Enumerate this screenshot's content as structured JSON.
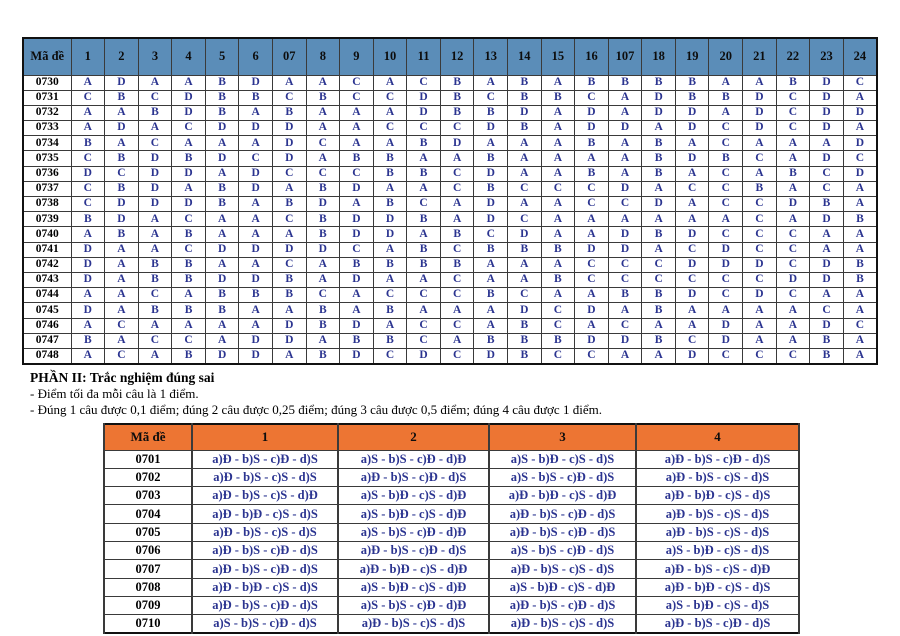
{
  "colors": {
    "header1_bg": "#5b8db8",
    "header2_bg": "#ed7533",
    "answer_text": "#2b3490",
    "code_text": "#000000",
    "page_bg": "#ffffff"
  },
  "part1_table": {
    "header_col0": "Mã đề",
    "columns": [
      "1",
      "2",
      "3",
      "4",
      "5",
      "6",
      "07",
      "8",
      "9",
      "10",
      "11",
      "12",
      "13",
      "14",
      "15",
      "16",
      "107",
      "18",
      "19",
      "20",
      "21",
      "22",
      "23",
      "24"
    ],
    "rows": [
      {
        "code": "0730",
        "answers": [
          "A",
          "D",
          "A",
          "A",
          "B",
          "D",
          "A",
          "A",
          "C",
          "A",
          "C",
          "B",
          "A",
          "B",
          "A",
          "B",
          "B",
          "B",
          "B",
          "A",
          "A",
          "B",
          "D",
          "C"
        ]
      },
      {
        "code": "0731",
        "answers": [
          "C",
          "B",
          "C",
          "D",
          "B",
          "B",
          "C",
          "B",
          "C",
          "C",
          "D",
          "B",
          "C",
          "B",
          "B",
          "C",
          "A",
          "D",
          "B",
          "B",
          "D",
          "C",
          "D",
          "A"
        ]
      },
      {
        "code": "0732",
        "answers": [
          "A",
          "A",
          "B",
          "D",
          "B",
          "A",
          "B",
          "A",
          "A",
          "A",
          "D",
          "B",
          "B",
          "D",
          "A",
          "D",
          "A",
          "D",
          "D",
          "A",
          "D",
          "C",
          "D",
          "D"
        ]
      },
      {
        "code": "0733",
        "answers": [
          "A",
          "D",
          "A",
          "C",
          "D",
          "D",
          "D",
          "A",
          "A",
          "C",
          "C",
          "C",
          "D",
          "B",
          "A",
          "D",
          "D",
          "A",
          "D",
          "C",
          "D",
          "C",
          "D",
          "A"
        ]
      },
      {
        "code": "0734",
        "answers": [
          "B",
          "A",
          "C",
          "A",
          "A",
          "A",
          "D",
          "C",
          "A",
          "A",
          "B",
          "D",
          "A",
          "A",
          "A",
          "B",
          "A",
          "B",
          "A",
          "C",
          "A",
          "A",
          "A",
          "D"
        ]
      },
      {
        "code": "0735",
        "answers": [
          "C",
          "B",
          "D",
          "B",
          "D",
          "C",
          "D",
          "A",
          "B",
          "B",
          "A",
          "A",
          "B",
          "A",
          "A",
          "A",
          "A",
          "B",
          "D",
          "B",
          "C",
          "A",
          "D",
          "C"
        ]
      },
      {
        "code": "0736",
        "answers": [
          "D",
          "C",
          "D",
          "D",
          "A",
          "D",
          "C",
          "C",
          "C",
          "B",
          "B",
          "C",
          "D",
          "A",
          "A",
          "B",
          "A",
          "B",
          "A",
          "C",
          "A",
          "B",
          "C",
          "D"
        ]
      },
      {
        "code": "0737",
        "answers": [
          "C",
          "B",
          "D",
          "A",
          "B",
          "D",
          "A",
          "B",
          "D",
          "A",
          "A",
          "C",
          "B",
          "C",
          "C",
          "C",
          "D",
          "A",
          "C",
          "C",
          "B",
          "A",
          "C",
          "A"
        ]
      },
      {
        "code": "0738",
        "answers": [
          "C",
          "D",
          "D",
          "D",
          "B",
          "A",
          "B",
          "D",
          "A",
          "B",
          "C",
          "A",
          "D",
          "A",
          "A",
          "C",
          "C",
          "D",
          "A",
          "C",
          "C",
          "D",
          "B",
          "A"
        ]
      },
      {
        "code": "0739",
        "answers": [
          "B",
          "D",
          "A",
          "C",
          "A",
          "A",
          "C",
          "B",
          "D",
          "D",
          "B",
          "A",
          "D",
          "C",
          "A",
          "A",
          "A",
          "A",
          "A",
          "A",
          "C",
          "A",
          "D",
          "B"
        ]
      },
      {
        "code": "0740",
        "answers": [
          "A",
          "B",
          "A",
          "B",
          "A",
          "A",
          "A",
          "B",
          "D",
          "D",
          "A",
          "B",
          "C",
          "D",
          "A",
          "A",
          "D",
          "B",
          "D",
          "C",
          "C",
          "C",
          "A",
          "A"
        ]
      },
      {
        "code": "0741",
        "answers": [
          "D",
          "A",
          "A",
          "C",
          "D",
          "D",
          "D",
          "D",
          "C",
          "A",
          "B",
          "C",
          "B",
          "B",
          "B",
          "D",
          "D",
          "A",
          "C",
          "D",
          "C",
          "C",
          "A",
          "A"
        ]
      },
      {
        "code": "0742",
        "answers": [
          "D",
          "A",
          "B",
          "B",
          "A",
          "A",
          "C",
          "A",
          "B",
          "B",
          "B",
          "B",
          "A",
          "A",
          "A",
          "C",
          "C",
          "C",
          "D",
          "D",
          "D",
          "C",
          "D",
          "B"
        ]
      },
      {
        "code": "0743",
        "answers": [
          "D",
          "A",
          "B",
          "B",
          "D",
          "D",
          "B",
          "A",
          "D",
          "A",
          "A",
          "C",
          "A",
          "A",
          "B",
          "C",
          "C",
          "C",
          "C",
          "C",
          "C",
          "D",
          "D",
          "B"
        ]
      },
      {
        "code": "0744",
        "answers": [
          "A",
          "A",
          "C",
          "A",
          "B",
          "B",
          "B",
          "C",
          "A",
          "C",
          "C",
          "C",
          "B",
          "C",
          "A",
          "A",
          "B",
          "B",
          "D",
          "C",
          "D",
          "C",
          "A",
          "A"
        ]
      },
      {
        "code": "0745",
        "answers": [
          "D",
          "A",
          "B",
          "B",
          "B",
          "A",
          "A",
          "B",
          "A",
          "B",
          "A",
          "A",
          "A",
          "D",
          "C",
          "D",
          "A",
          "B",
          "A",
          "A",
          "A",
          "A",
          "C",
          "A"
        ]
      },
      {
        "code": "0746",
        "answers": [
          "A",
          "C",
          "A",
          "A",
          "A",
          "A",
          "D",
          "B",
          "D",
          "A",
          "C",
          "C",
          "A",
          "B",
          "C",
          "A",
          "C",
          "A",
          "A",
          "D",
          "A",
          "A",
          "D",
          "C"
        ]
      },
      {
        "code": "0747",
        "answers": [
          "B",
          "A",
          "C",
          "C",
          "A",
          "D",
          "D",
          "A",
          "B",
          "B",
          "C",
          "A",
          "B",
          "B",
          "B",
          "D",
          "D",
          "B",
          "C",
          "D",
          "A",
          "A",
          "B",
          "A"
        ]
      },
      {
        "code": "0748",
        "answers": [
          "A",
          "C",
          "A",
          "B",
          "D",
          "D",
          "A",
          "B",
          "D",
          "C",
          "D",
          "C",
          "D",
          "B",
          "C",
          "C",
          "A",
          "A",
          "D",
          "C",
          "C",
          "C",
          "B",
          "A"
        ]
      }
    ]
  },
  "section2": {
    "title": "PHẦN II: Trắc nghiệm đúng sai",
    "notes": [
      "- Điểm tối đa mỗi câu là 1 điểm.",
      "- Đúng 1 câu được 0,1 điểm; đúng 2 câu được 0,25 điểm; đúng 3 câu được 0,5 điểm; đúng 4 câu được 1 điểm."
    ]
  },
  "part2_table": {
    "header_col0": "Mã đề",
    "columns": [
      "1",
      "2",
      "3",
      "4"
    ],
    "rows": [
      {
        "code": "0701",
        "answers": [
          "a)Đ - b)S - c)Đ - d)S",
          "a)S - b)S - c)Đ - d)Đ",
          "a)S - b)Đ - c)S - d)S",
          "a)Đ - b)S - c)Đ - d)S"
        ]
      },
      {
        "code": "0702",
        "answers": [
          "a)Đ - b)S - c)S - d)S",
          "a)Đ - b)S - c)Đ - d)S",
          "a)S - b)S - c)Đ - d)S",
          "a)Đ - b)S - c)S - d)S"
        ]
      },
      {
        "code": "0703",
        "answers": [
          "a)Đ - b)S - c)S - d)Đ",
          "a)S - b)Đ - c)S - d)Đ",
          "a)Đ - b)Đ - c)S - d)Đ",
          "a)Đ - b)Đ - c)S - d)S"
        ]
      },
      {
        "code": "0704",
        "answers": [
          "a)Đ - b)Đ - c)S - d)S",
          "a)S - b)Đ - c)S - d)Đ",
          "a)Đ - b)S - c)Đ - d)S",
          "a)Đ - b)S - c)S - d)S"
        ]
      },
      {
        "code": "0705",
        "answers": [
          "a)Đ - b)S - c)S - d)S",
          "a)S - b)S - c)Đ - d)Đ",
          "a)Đ - b)S - c)Đ - d)S",
          "a)Đ - b)S - c)S - d)S"
        ]
      },
      {
        "code": "0706",
        "answers": [
          "a)Đ - b)S - c)Đ - d)S",
          "a)Đ - b)S - c)Đ - d)S",
          "a)S - b)S - c)Đ - d)S",
          "a)S - b)Đ - c)S - d)S"
        ]
      },
      {
        "code": "0707",
        "answers": [
          "a)Đ - b)S - c)Đ - d)S",
          "a)Đ - b)Đ - c)S - d)Đ",
          "a)Đ - b)S - c)S - d)S",
          "a)Đ - b)S - c)S - d)Đ"
        ]
      },
      {
        "code": "0708",
        "answers": [
          "a)Đ - b)Đ - c)S - d)S",
          "a)S - b)Đ - c)S - d)Đ",
          "a)S - b)Đ - c)S - d)Đ",
          "a)Đ - b)Đ - c)S - d)S"
        ]
      },
      {
        "code": "0709",
        "answers": [
          "a)Đ - b)S - c)Đ - d)S",
          "a)S - b)S - c)Đ - d)Đ",
          "a)Đ - b)S - c)Đ - d)S",
          "a)S - b)Đ - c)S - d)S"
        ]
      },
      {
        "code": "0710",
        "answers": [
          "a)S - b)S - c)Đ - d)S",
          "a)Đ - b)S - c)S - d)S",
          "a)Đ - b)S - c)S - d)S",
          "a)Đ - b)S - c)Đ - d)S"
        ]
      }
    ]
  }
}
